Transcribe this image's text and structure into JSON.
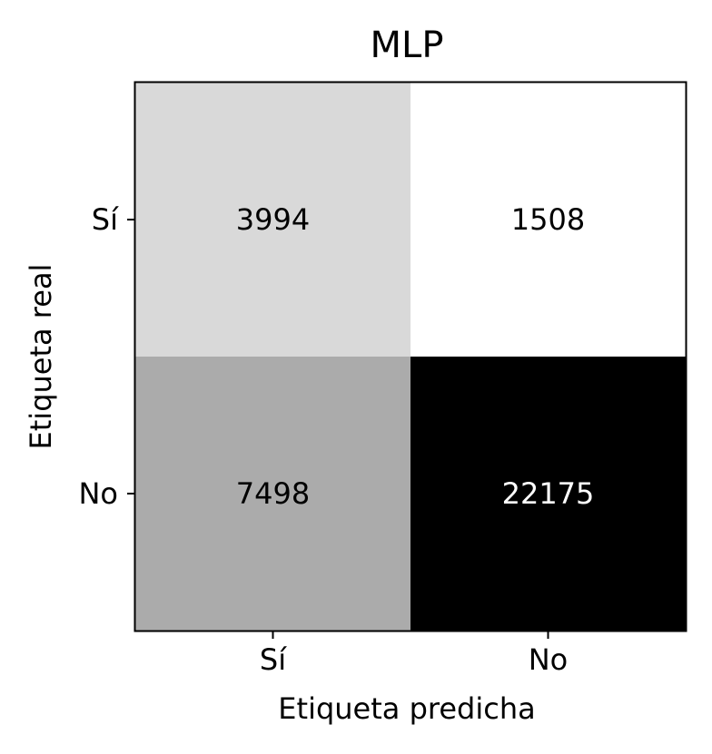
{
  "chart_data": {
    "type": "heatmap",
    "title": "MLP",
    "xlabel": "Etiqueta predicha",
    "ylabel": "Etiqueta real",
    "x_categories": [
      "Sí",
      "No"
    ],
    "y_categories": [
      "Sí",
      "No"
    ],
    "values": [
      [
        3994,
        1508
      ],
      [
        7498,
        22175
      ]
    ],
    "colormap": "Greys",
    "grid": false,
    "colors": {
      "low": "#ffffff",
      "high": "#000000",
      "text_dark": "#000000",
      "text_light": "#ffffff"
    }
  }
}
